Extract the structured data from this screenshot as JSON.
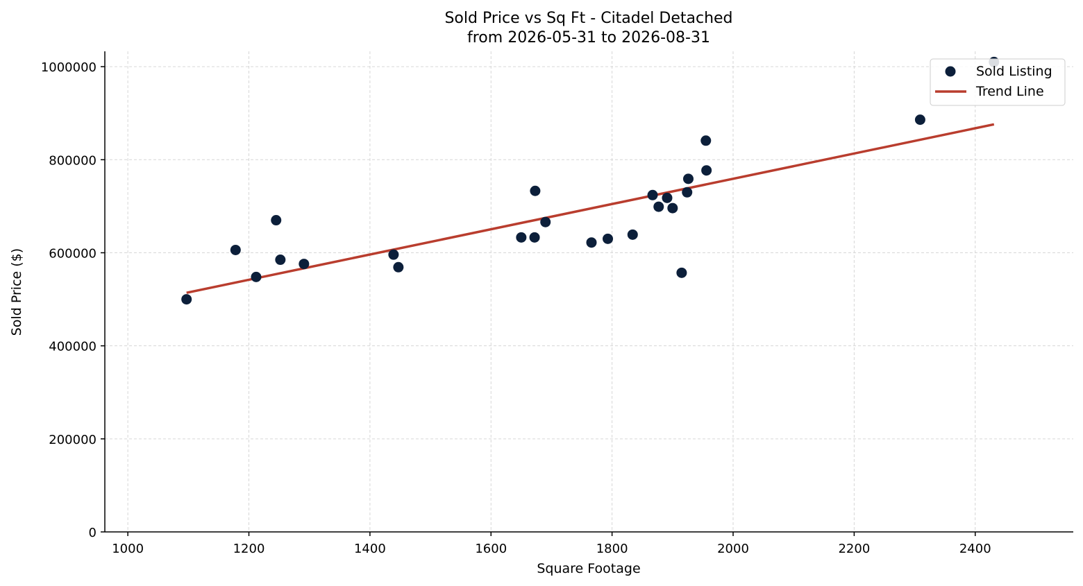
{
  "chart_data": {
    "type": "scatter",
    "title_line1": "Sold Price vs Sq Ft - Citadel Detached",
    "title_line2": "from 2026-05-31 to 2026-08-31",
    "xlabel": "Square Footage",
    "ylabel": "Sold Price ($)",
    "xlim": [
      962,
      2562
    ],
    "ylim": [
      0,
      1033000
    ],
    "xticks": [
      1000,
      1200,
      1400,
      1600,
      1800,
      2000,
      2200,
      2400
    ],
    "yticks": [
      0,
      200000,
      400000,
      600000,
      800000,
      1000000
    ],
    "grid": true,
    "legend_position": "top-right",
    "colors": {
      "points": "#0c1f3a",
      "trend": "#b93d2e",
      "grid": "#d6d6d6"
    },
    "series": [
      {
        "name": "Sold Listing",
        "kind": "scatter",
        "points": [
          {
            "x": 1097,
            "y": 500000
          },
          {
            "x": 1178,
            "y": 606000
          },
          {
            "x": 1212,
            "y": 548000
          },
          {
            "x": 1245,
            "y": 670000
          },
          {
            "x": 1252,
            "y": 585000
          },
          {
            "x": 1291,
            "y": 576000
          },
          {
            "x": 1439,
            "y": 596000
          },
          {
            "x": 1447,
            "y": 569000
          },
          {
            "x": 1650,
            "y": 633000
          },
          {
            "x": 1672,
            "y": 633000
          },
          {
            "x": 1673,
            "y": 733000
          },
          {
            "x": 1690,
            "y": 666000
          },
          {
            "x": 1766,
            "y": 622000
          },
          {
            "x": 1793,
            "y": 630000
          },
          {
            "x": 1834,
            "y": 639000
          },
          {
            "x": 1867,
            "y": 724000
          },
          {
            "x": 1877,
            "y": 699000
          },
          {
            "x": 1891,
            "y": 718000
          },
          {
            "x": 1900,
            "y": 696000
          },
          {
            "x": 1915,
            "y": 557000
          },
          {
            "x": 1924,
            "y": 730000
          },
          {
            "x": 1926,
            "y": 759000
          },
          {
            "x": 1955,
            "y": 841000
          },
          {
            "x": 1956,
            "y": 777000
          },
          {
            "x": 2309,
            "y": 886000
          },
          {
            "x": 2431,
            "y": 1010000
          }
        ]
      },
      {
        "name": "Trend Line",
        "kind": "line",
        "points": [
          {
            "x": 1097,
            "y": 514000
          },
          {
            "x": 2431,
            "y": 876000
          }
        ]
      }
    ]
  }
}
